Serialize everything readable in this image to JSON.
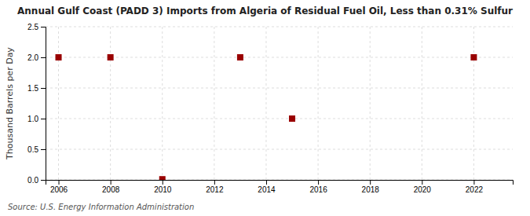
{
  "chart_data": {
    "type": "scatter",
    "title": "Annual Gulf Coast (PADD 3) Imports from Algeria of Residual Fuel Oil, Less than 0.31% Sulfur",
    "ylabel": "Thousand Barrels per Day",
    "source": "Source: U.S. Energy Information Administration",
    "x": [
      2006,
      2008,
      2010,
      2013,
      2015,
      2022
    ],
    "values": [
      2.0,
      2.0,
      0.01,
      2.0,
      1.0,
      2.0
    ],
    "color": "#990000",
    "marker": "square",
    "xlim": [
      2005.5,
      2023.5
    ],
    "ylim": [
      0.0,
      2.5
    ],
    "xticks": [
      2006,
      2008,
      2010,
      2012,
      2014,
      2016,
      2018,
      2020,
      2022
    ],
    "yticks": [
      {
        "value": 0.0,
        "label": "0.0"
      },
      0.5,
      {
        "value": 1.0,
        "label": "1.0"
      },
      1.5,
      {
        "value": 2.0,
        "label": "2.0"
      },
      2.5
    ],
    "grid": true
  }
}
